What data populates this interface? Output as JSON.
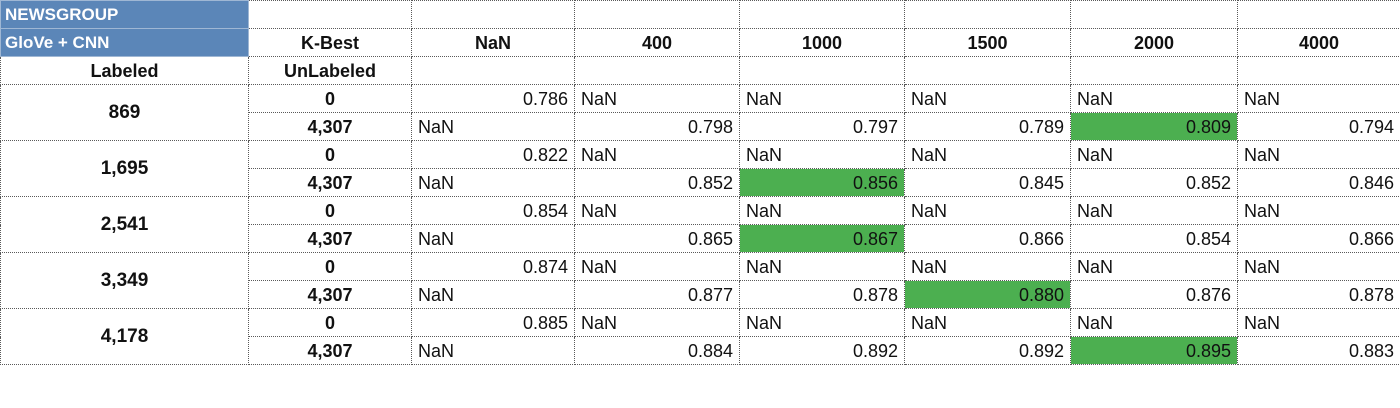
{
  "chart_data": {
    "type": "table",
    "title_lines": [
      "NEWSGROUP",
      "GloVe + CNN"
    ],
    "column_header_label": "K-Best",
    "columns": [
      "NaN",
      "400",
      "1000",
      "1500",
      "2000",
      "4000"
    ],
    "row_header_labeled": "Labeled",
    "row_header_unlabeled": "UnLabeled",
    "highlight_color": "#4caf50",
    "groups": [
      {
        "labeled": "869",
        "rows": [
          {
            "unlabeled": "0",
            "cells": [
              "0.786",
              "NaN",
              "NaN",
              "NaN",
              "NaN",
              "NaN"
            ],
            "highlight": null
          },
          {
            "unlabeled": "4,307",
            "cells": [
              "NaN",
              "0.798",
              "0.797",
              "0.789",
              "0.809",
              "0.794"
            ],
            "highlight": 4
          }
        ]
      },
      {
        "labeled": "1,695",
        "rows": [
          {
            "unlabeled": "0",
            "cells": [
              "0.822",
              "NaN",
              "NaN",
              "NaN",
              "NaN",
              "NaN"
            ],
            "highlight": null
          },
          {
            "unlabeled": "4,307",
            "cells": [
              "NaN",
              "0.852",
              "0.856",
              "0.845",
              "0.852",
              "0.846"
            ],
            "highlight": 2
          }
        ]
      },
      {
        "labeled": "2,541",
        "rows": [
          {
            "unlabeled": "0",
            "cells": [
              "0.854",
              "NaN",
              "NaN",
              "NaN",
              "NaN",
              "NaN"
            ],
            "highlight": null
          },
          {
            "unlabeled": "4,307",
            "cells": [
              "NaN",
              "0.865",
              "0.867",
              "0.866",
              "0.854",
              "0.866"
            ],
            "highlight": 2
          }
        ]
      },
      {
        "labeled": "3,349",
        "rows": [
          {
            "unlabeled": "0",
            "cells": [
              "0.874",
              "NaN",
              "NaN",
              "NaN",
              "NaN",
              "NaN"
            ],
            "highlight": null
          },
          {
            "unlabeled": "4,307",
            "cells": [
              "NaN",
              "0.877",
              "0.878",
              "0.880",
              "0.876",
              "0.878"
            ],
            "highlight": 3
          }
        ]
      },
      {
        "labeled": "4,178",
        "rows": [
          {
            "unlabeled": "0",
            "cells": [
              "0.885",
              "NaN",
              "NaN",
              "NaN",
              "NaN",
              "NaN"
            ],
            "highlight": null
          },
          {
            "unlabeled": "4,307",
            "cells": [
              "NaN",
              "0.884",
              "0.892",
              "0.892",
              "0.895",
              "0.883"
            ],
            "highlight": 4
          }
        ]
      }
    ]
  }
}
